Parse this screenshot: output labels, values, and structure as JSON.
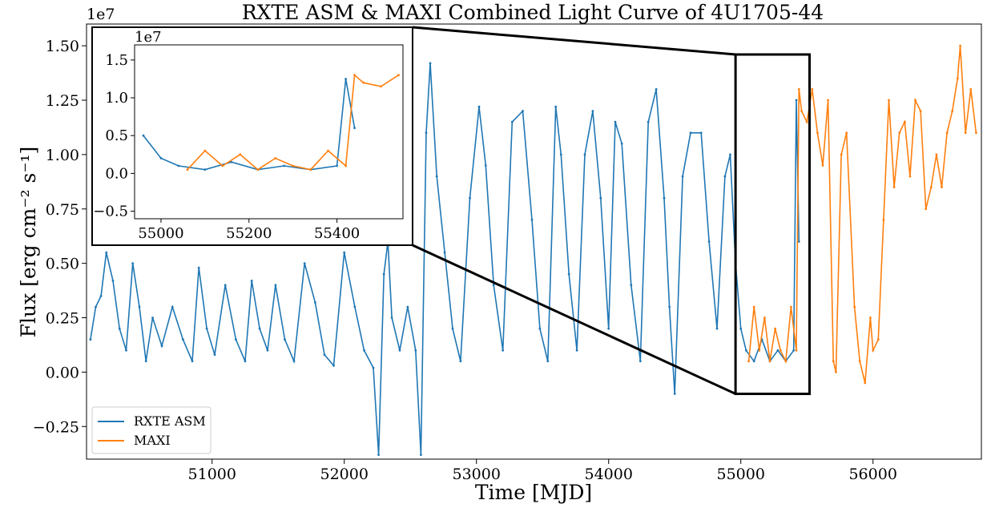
{
  "chart_data": {
    "type": "line",
    "title": "RXTE ASM & MAXI Combined Light Curve of 4U1705-44",
    "xlabel": "Time [MJD]",
    "ylabel": "Flux [erg cm⁻² s⁻¹]",
    "y_offset_text": "1e7",
    "xlim": [
      50050,
      56820
    ],
    "ylim": [
      -0.4,
      1.6
    ],
    "x_ticks": [
      51000,
      52000,
      53000,
      54000,
      55000,
      56000
    ],
    "x_tick_labels": [
      "51000",
      "52000",
      "53000",
      "54000",
      "55000",
      "56000"
    ],
    "y_ticks": [
      -0.25,
      0.0,
      0.25,
      0.5,
      0.75,
      1.0,
      1.25,
      1.5
    ],
    "y_tick_labels": [
      "−0.25",
      "0.00",
      "0.25",
      "0.50",
      "0.75",
      "1.00",
      "1.25",
      "1.50"
    ],
    "legend": {
      "placement": "lower-left",
      "entries": [
        "RXTE ASM",
        "MAXI"
      ]
    },
    "series": [
      {
        "name": "RXTE ASM",
        "color": "#1f77b4",
        "x": [
          50080,
          50120,
          50160,
          50200,
          50250,
          50300,
          50350,
          50400,
          50450,
          50500,
          50550,
          50620,
          50700,
          50780,
          50850,
          50900,
          50960,
          51020,
          51100,
          51180,
          51250,
          51300,
          51360,
          51420,
          51480,
          51550,
          51620,
          51700,
          51780,
          51850,
          51920,
          52000,
          52080,
          52150,
          52220,
          52260,
          52300,
          52330,
          52360,
          52420,
          52480,
          52540,
          52580,
          52620,
          52650,
          52700,
          52760,
          52820,
          52880,
          52950,
          53020,
          53070,
          53130,
          53200,
          53270,
          53350,
          53420,
          53480,
          53540,
          53600,
          53640,
          53700,
          53760,
          53820,
          53880,
          53940,
          54000,
          54050,
          54100,
          54170,
          54240,
          54300,
          54360,
          54420,
          54460,
          54500,
          54560,
          54620,
          54700,
          54760,
          54820,
          54880,
          54920,
          54960,
          55000,
          55040,
          55100,
          55160,
          55220,
          55280,
          55340,
          55400,
          55420,
          55440
        ],
        "y": [
          0.15,
          0.3,
          0.35,
          0.55,
          0.42,
          0.2,
          0.1,
          0.5,
          0.3,
          0.05,
          0.25,
          0.12,
          0.3,
          0.15,
          0.05,
          0.48,
          0.2,
          0.08,
          0.4,
          0.15,
          0.05,
          0.42,
          0.2,
          0.1,
          0.4,
          0.15,
          0.05,
          0.5,
          0.32,
          0.08,
          0.03,
          0.55,
          0.3,
          0.1,
          0.02,
          -0.38,
          0.45,
          0.6,
          0.25,
          0.1,
          0.3,
          0.1,
          -0.38,
          1.1,
          1.42,
          0.9,
          0.55,
          0.2,
          0.05,
          0.8,
          1.22,
          0.95,
          0.4,
          0.1,
          1.15,
          1.2,
          0.7,
          0.2,
          0.05,
          1.22,
          1.0,
          0.45,
          0.1,
          1.0,
          1.2,
          0.8,
          0.2,
          1.15,
          1.05,
          0.4,
          0.05,
          1.15,
          1.3,
          0.8,
          0.3,
          -0.1,
          0.9,
          1.1,
          1.1,
          0.6,
          0.2,
          0.9,
          1.0,
          0.5,
          0.2,
          0.1,
          0.05,
          0.15,
          0.05,
          0.1,
          0.05,
          0.1,
          1.25,
          0.6
        ]
      },
      {
        "name": "MAXI",
        "color": "#ff7f0e",
        "x": [
          55060,
          55100,
          55140,
          55180,
          55220,
          55260,
          55300,
          55340,
          55380,
          55420,
          55440,
          55460,
          55500,
          55540,
          55580,
          55620,
          55660,
          55700,
          55720,
          55760,
          55800,
          55860,
          55900,
          55940,
          55980,
          56000,
          56040,
          56080,
          56120,
          56160,
          56200,
          56240,
          56280,
          56320,
          56360,
          56400,
          56440,
          56480,
          56520,
          56560,
          56600,
          56640,
          56660,
          56700,
          56740,
          56780
        ],
        "y": [
          0.05,
          0.3,
          0.1,
          0.25,
          0.05,
          0.2,
          0.1,
          0.05,
          0.3,
          0.1,
          1.3,
          1.2,
          1.15,
          1.3,
          1.1,
          0.95,
          1.25,
          0.05,
          0.0,
          1.0,
          1.1,
          0.3,
          0.05,
          -0.05,
          0.25,
          0.1,
          0.15,
          0.7,
          1.25,
          0.85,
          1.1,
          1.15,
          0.9,
          1.25,
          1.2,
          0.75,
          0.85,
          1.0,
          0.85,
          1.1,
          1.2,
          1.35,
          1.5,
          1.1,
          1.3,
          1.1
        ]
      }
    ],
    "inset": {
      "xlim": [
        54940,
        55550
      ],
      "ylim": [
        -0.6,
        1.7
      ],
      "y_offset_text": "1e7",
      "x_ticks": [
        55000,
        55200,
        55400
      ],
      "x_tick_labels": [
        "55000",
        "55200",
        "55400"
      ],
      "y_ticks": [
        -0.5,
        0.0,
        0.5,
        1.0,
        1.5
      ],
      "y_tick_labels": [
        "−0.5",
        "0.0",
        "0.5",
        "1.0",
        "1.5"
      ],
      "zoom_region": {
        "xlim": [
          54960,
          55520
        ],
        "ylim": [
          -0.1,
          1.46
        ]
      }
    }
  }
}
